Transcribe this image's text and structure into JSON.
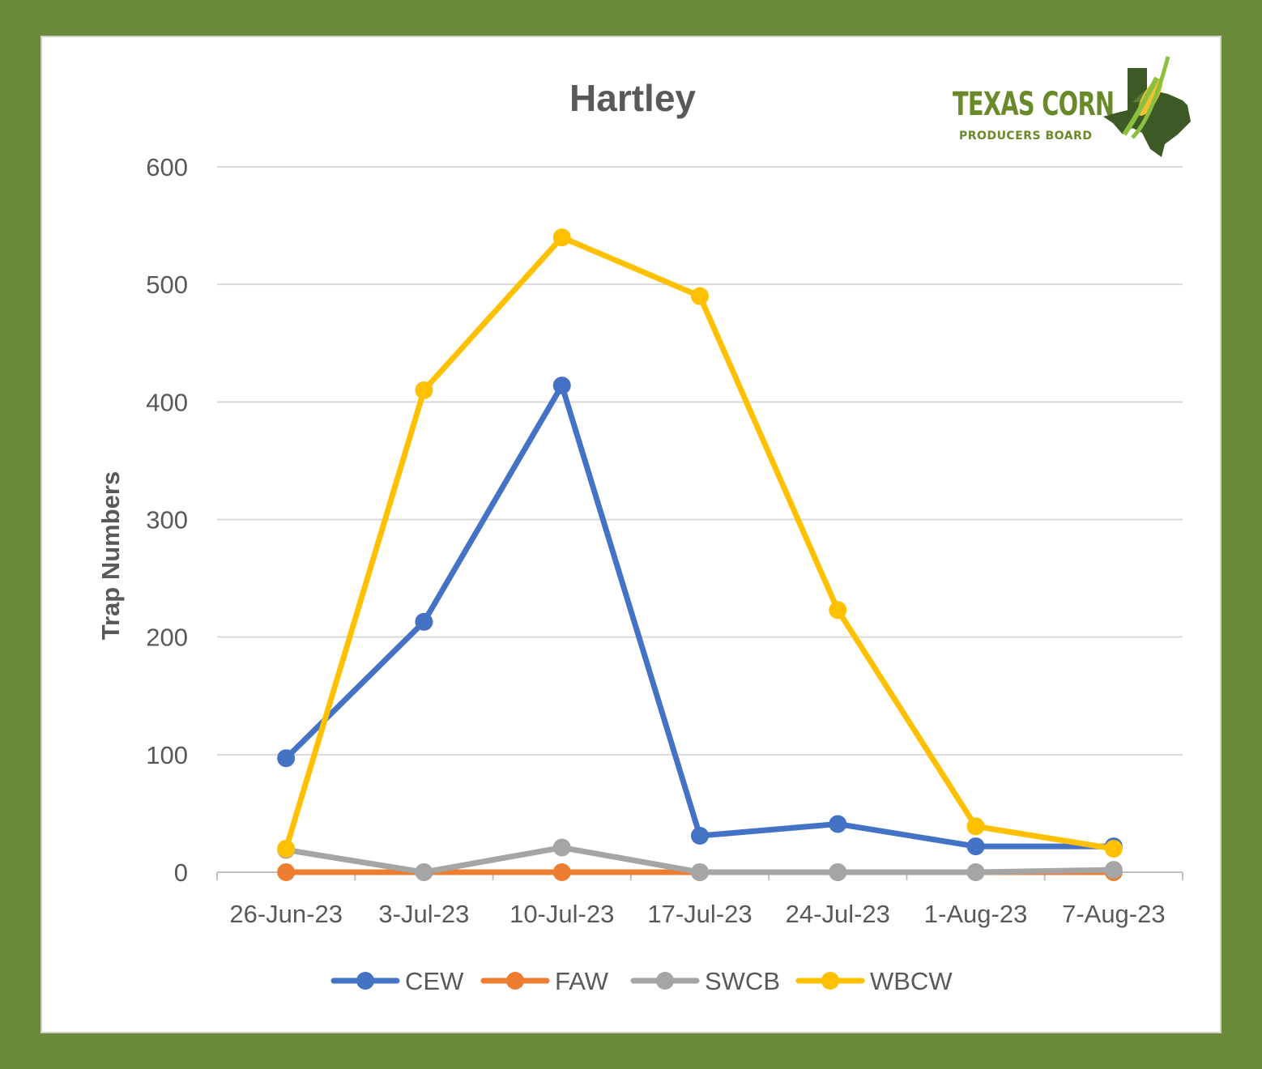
{
  "logo": {
    "line1": "TEXAS CORN",
    "line2": "PRODUCERS BOARD"
  },
  "colors": {
    "page_background": "#6a8a3a",
    "plot_background": "#ffffff",
    "gridline": "#d9d9d9",
    "text": "#595959"
  },
  "chart_data": {
    "type": "line",
    "title": "Hartley",
    "xlabel": "",
    "ylabel": "Trap Numbers",
    "categories": [
      "26-Jun-23",
      "3-Jul-23",
      "10-Jul-23",
      "17-Jul-23",
      "24-Jul-23",
      "1-Aug-23",
      "7-Aug-23"
    ],
    "ylim": [
      0,
      600
    ],
    "yticks": [
      0,
      100,
      200,
      300,
      400,
      500,
      600
    ],
    "grid": true,
    "legend_position": "bottom",
    "series": [
      {
        "name": "CEW",
        "color": "#4472c4",
        "values": [
          97,
          213,
          414,
          31,
          41,
          22,
          22
        ]
      },
      {
        "name": "FAW",
        "color": "#ed7d31",
        "values": [
          0,
          0,
          0,
          0,
          0,
          0,
          0
        ]
      },
      {
        "name": "SWCB",
        "color": "#a5a5a5",
        "values": [
          19,
          0,
          21,
          0,
          0,
          0,
          2
        ]
      },
      {
        "name": "WBCW",
        "color": "#ffc000",
        "values": [
          20,
          410,
          540,
          490,
          223,
          39,
          20
        ]
      }
    ]
  }
}
